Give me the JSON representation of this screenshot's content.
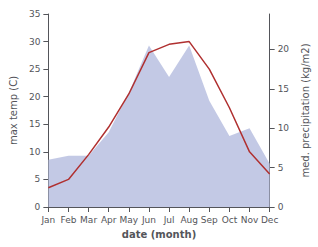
{
  "chart_data": {
    "type": "line",
    "categories": [
      "Jan",
      "Feb",
      "Mar",
      "Apr",
      "May",
      "Jun",
      "Jul",
      "Aug",
      "Sep",
      "Oct",
      "Nov",
      "Dec"
    ],
    "xlabel": "date (month)",
    "ylabel": "max temp (C)",
    "y2label": "med. precipitation (kg/m2)",
    "series": [
      {
        "type": "area",
        "axis": "y2",
        "color": "#b8c0e0",
        "values": [
          6.0,
          6.5,
          6.5,
          9.5,
          14.5,
          20.5,
          16.5,
          20.5,
          13.5,
          9.0,
          10.0,
          5.5
        ]
      },
      {
        "type": "line",
        "axis": "y",
        "color": "#b03030",
        "values": [
          3.5,
          5.0,
          9.5,
          14.5,
          20.5,
          28.0,
          29.5,
          30.0,
          25.0,
          18.0,
          10.0,
          6.0
        ]
      }
    ],
    "ylim": [
      0,
      35
    ],
    "yticks": [
      0,
      5,
      10,
      15,
      20,
      25,
      30,
      35
    ],
    "y2lim": [
      0,
      24.5
    ],
    "y2ticks": [
      0,
      5,
      10,
      15,
      20
    ],
    "grid": false
  }
}
